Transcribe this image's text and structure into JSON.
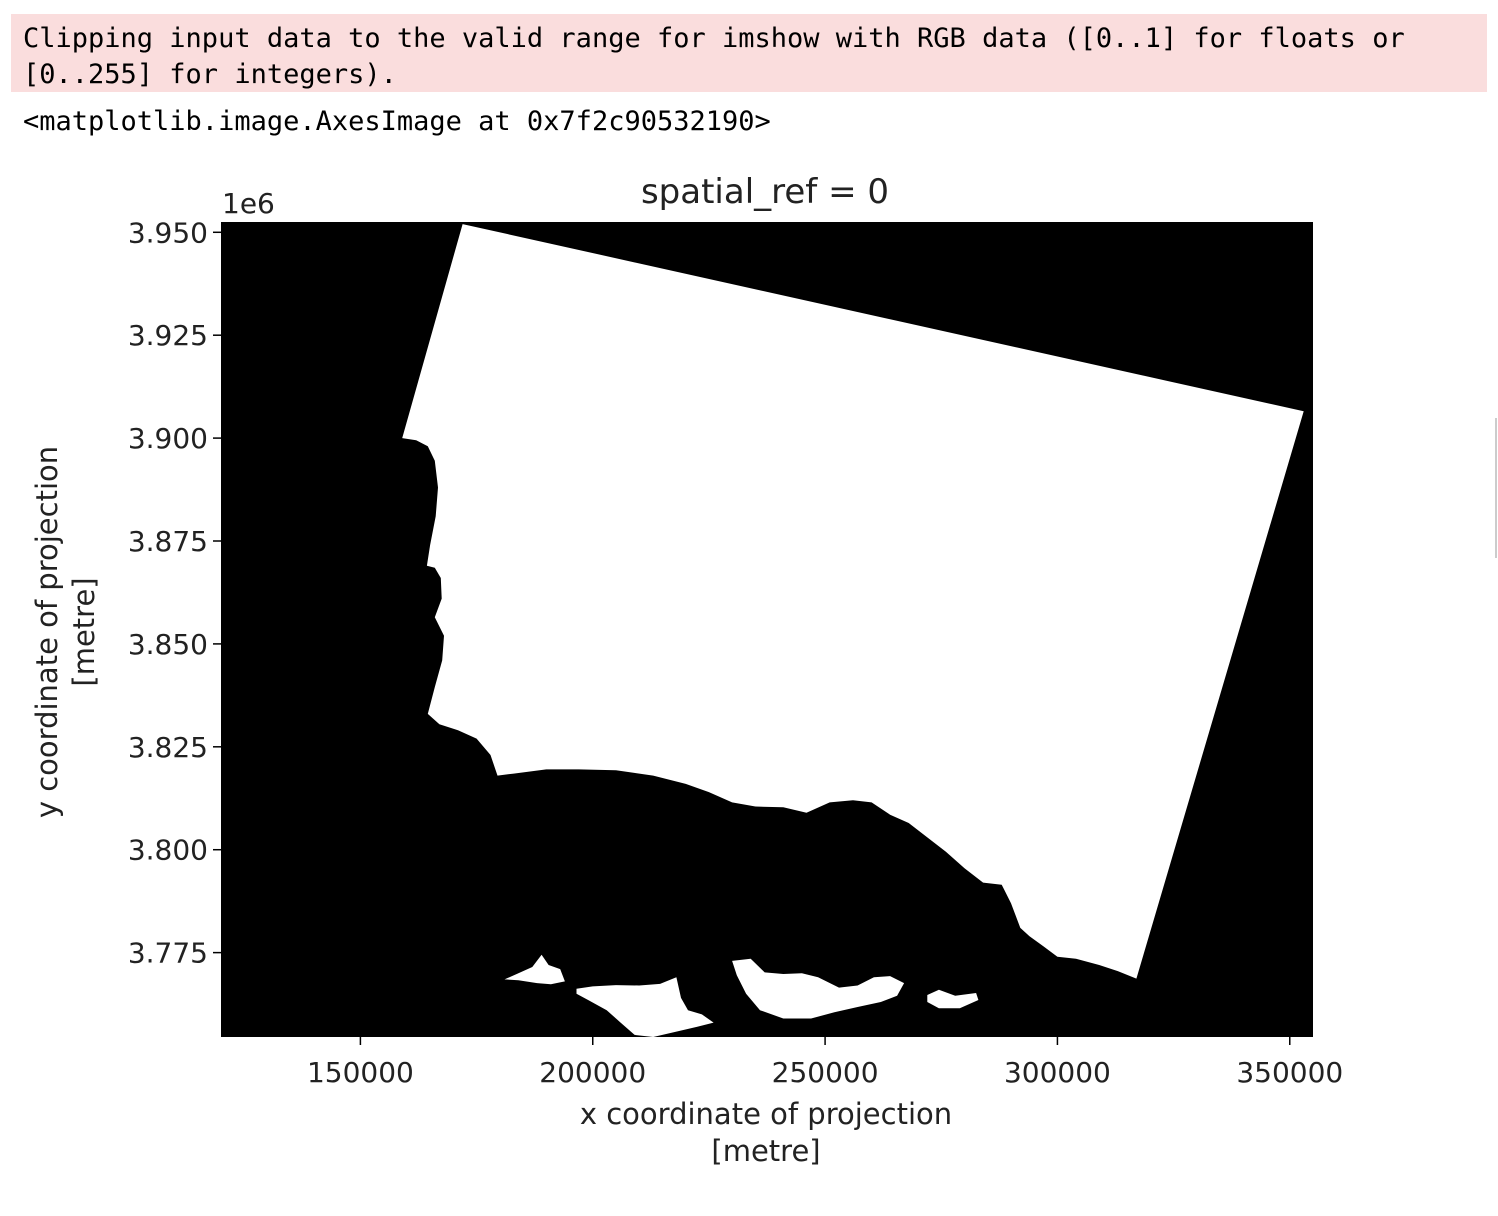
{
  "output": {
    "stderr_lines": [
      "Clipping input data to the valid range for imshow with RGB data ([0..1] for floats or",
      "[0..255] for integers)."
    ],
    "stdout": "<matplotlib.image.AxesImage at 0x7f2c90532190>"
  },
  "chart_data": {
    "type": "image",
    "title": "spatial_ref = 0",
    "xlabel_lines": [
      "x coordinate of projection",
      "[metre]"
    ],
    "ylabel_lines": [
      "y coordinate of projection",
      "[metre]"
    ],
    "y_offset_text": "1e6",
    "xlim": [
      120000,
      355000
    ],
    "ylim": [
      3754500,
      3952500
    ],
    "x_ticks": [
      150000,
      200000,
      250000,
      300000,
      350000
    ],
    "x_tick_labels": [
      "150000",
      "200000",
      "250000",
      "300000",
      "350000"
    ],
    "y_ticks": [
      3950000,
      3925000,
      3900000,
      3875000,
      3850000,
      3825000,
      3800000,
      3775000
    ],
    "y_tick_labels": [
      "3.950",
      "3.925",
      "3.900",
      "3.875",
      "3.850",
      "3.825",
      "3.800",
      "3.775"
    ],
    "colors": {
      "background": "#000000",
      "land": "#ffffff"
    },
    "land_polygon": [
      [
        172000,
        3952000
      ],
      [
        159000,
        3900000
      ],
      [
        162000,
        3899500
      ],
      [
        164500,
        3898000
      ],
      [
        166000,
        3894500
      ],
      [
        166700,
        3888000
      ],
      [
        166200,
        3881000
      ],
      [
        165000,
        3874000
      ],
      [
        164300,
        3869000
      ],
      [
        166000,
        3868500
      ],
      [
        167300,
        3866000
      ],
      [
        167500,
        3861000
      ],
      [
        166000,
        3856500
      ],
      [
        168000,
        3852000
      ],
      [
        167600,
        3846000
      ],
      [
        166000,
        3839500
      ],
      [
        164500,
        3833000
      ],
      [
        167000,
        3830500
      ],
      [
        171000,
        3829000
      ],
      [
        175000,
        3827000
      ],
      [
        178000,
        3823000
      ],
      [
        179500,
        3818000
      ],
      [
        183000,
        3818500
      ],
      [
        190000,
        3819500
      ],
      [
        197000,
        3819500
      ],
      [
        205000,
        3819300
      ],
      [
        213000,
        3818000
      ],
      [
        220000,
        3816000
      ],
      [
        225000,
        3814000
      ],
      [
        230000,
        3811500
      ],
      [
        235000,
        3810500
      ],
      [
        241000,
        3810300
      ],
      [
        246000,
        3809000
      ],
      [
        251000,
        3811500
      ],
      [
        256000,
        3812000
      ],
      [
        260000,
        3811500
      ],
      [
        264000,
        3808500
      ],
      [
        268000,
        3806500
      ],
      [
        272000,
        3803000
      ],
      [
        276000,
        3799500
      ],
      [
        280000,
        3795500
      ],
      [
        284000,
        3792000
      ],
      [
        288000,
        3791500
      ],
      [
        290000,
        3787000
      ],
      [
        292000,
        3781000
      ],
      [
        294000,
        3779000
      ],
      [
        297000,
        3776500
      ],
      [
        300000,
        3774000
      ],
      [
        304000,
        3773500
      ],
      [
        309000,
        3772000
      ],
      [
        313000,
        3770500
      ],
      [
        317000,
        3768700
      ],
      [
        353000,
        3906500
      ]
    ],
    "islands": [
      [
        [
          181000,
          3768500
        ],
        [
          184000,
          3770000
        ],
        [
          187000,
          3771500
        ],
        [
          189000,
          3774500
        ],
        [
          190500,
          3772000
        ],
        [
          193000,
          3771000
        ],
        [
          194000,
          3768000
        ],
        [
          191000,
          3767300
        ],
        [
          188000,
          3767600
        ],
        [
          184000,
          3768300
        ]
      ],
      [
        [
          196500,
          3766200
        ],
        [
          200000,
          3766800
        ],
        [
          205000,
          3767100
        ],
        [
          210000,
          3767000
        ],
        [
          214500,
          3767400
        ],
        [
          218000,
          3769000
        ],
        [
          219000,
          3764000
        ],
        [
          220500,
          3761000
        ],
        [
          223500,
          3760000
        ],
        [
          226000,
          3758000
        ],
        [
          222500,
          3757000
        ],
        [
          218000,
          3755800
        ],
        [
          213000,
          3754500
        ],
        [
          209000,
          3755000
        ],
        [
          206000,
          3758000
        ],
        [
          203000,
          3761000
        ],
        [
          199000,
          3763500
        ],
        [
          196500,
          3765000
        ]
      ],
      [
        [
          230000,
          3773000
        ],
        [
          234000,
          3773500
        ],
        [
          237000,
          3770200
        ],
        [
          241000,
          3769800
        ],
        [
          245000,
          3770000
        ],
        [
          248500,
          3769000
        ],
        [
          253000,
          3766500
        ],
        [
          257000,
          3767000
        ],
        [
          260500,
          3769000
        ],
        [
          264000,
          3769300
        ],
        [
          267000,
          3767600
        ],
        [
          265500,
          3764500
        ],
        [
          262000,
          3763000
        ],
        [
          257000,
          3761800
        ],
        [
          252000,
          3760500
        ],
        [
          247000,
          3759000
        ],
        [
          241000,
          3759000
        ],
        [
          236000,
          3761000
        ],
        [
          233000,
          3765000
        ],
        [
          231000,
          3769500
        ]
      ],
      [
        [
          272000,
          3764700
        ],
        [
          274500,
          3766000
        ],
        [
          278000,
          3764500
        ],
        [
          282500,
          3765200
        ],
        [
          283000,
          3763500
        ],
        [
          279000,
          3761500
        ],
        [
          274500,
          3761500
        ],
        [
          272000,
          3763000
        ]
      ]
    ]
  }
}
